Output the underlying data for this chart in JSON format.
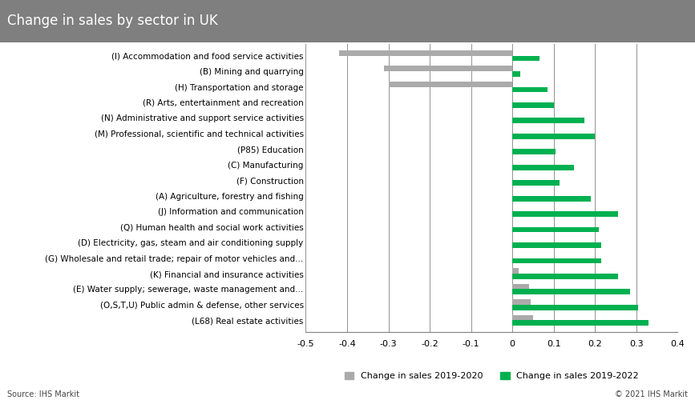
{
  "title": "Change in sales by sector in UK",
  "categories": [
    "(I) Accommodation and food service activities",
    "(B) Mining and quarrying",
    "(H) Transportation and storage",
    "(R) Arts, entertainment and recreation",
    "(N) Administrative and support service activities",
    "(M) Professional, scientific and technical activities",
    "(P85) Education",
    "(C) Manufacturing",
    "(F) Construction",
    "(A) Agriculture, forestry and fishing",
    "(J) Information and communication",
    "(Q) Human health and social work activities",
    "(D) Electricity, gas, steam and air conditioning supply",
    "(G) Wholesale and retail trade; repair of motor vehicles and...",
    "(K) Financial and insurance activities",
    "(E) Water supply; sewerage, waste management and...",
    "(O,S,T,U) Public admin & defense, other services",
    "(L68) Real estate activities"
  ],
  "values_2019_2020": [
    -0.42,
    -0.31,
    -0.3,
    0.0,
    0.0,
    0.0,
    0.0,
    0.0,
    0.0,
    0.0,
    0.0,
    0.0,
    0.0,
    0.0,
    0.015,
    0.04,
    0.045,
    0.05
  ],
  "values_2019_2022": [
    0.065,
    0.02,
    0.085,
    0.1,
    0.175,
    0.2,
    0.105,
    0.15,
    0.115,
    0.19,
    0.255,
    0.21,
    0.215,
    0.215,
    0.255,
    0.285,
    0.305,
    0.33
  ],
  "color_2019_2020": "#aaaaaa",
  "color_2019_2022": "#00b050",
  "xlim": [
    -0.5,
    0.4
  ],
  "xticks": [
    -0.5,
    -0.4,
    -0.3,
    -0.2,
    -0.1,
    0.0,
    0.1,
    0.2,
    0.3,
    0.4
  ],
  "xtick_labels": [
    "-0.5",
    "-0.4",
    "-0.3",
    "-0.2",
    "-0.1",
    "0",
    "0.1",
    "0.2",
    "0.3",
    "0.4"
  ],
  "legend_label_1": "Change in sales 2019-2020",
  "legend_label_2": "Change in sales 2019-2022",
  "source_text": "Source: IHS Markit",
  "copyright_text": "© 2021 IHS Markit",
  "title_bg_color": "#7f7f7f",
  "title_text_color": "#ffffff",
  "bar_height": 0.35,
  "gridline_color": "#808080",
  "background_color": "#ffffff",
  "fontsize_title": 12,
  "fontsize_labels": 7.5,
  "fontsize_ticks": 8,
  "fontsize_legend": 8,
  "fontsize_source": 7
}
